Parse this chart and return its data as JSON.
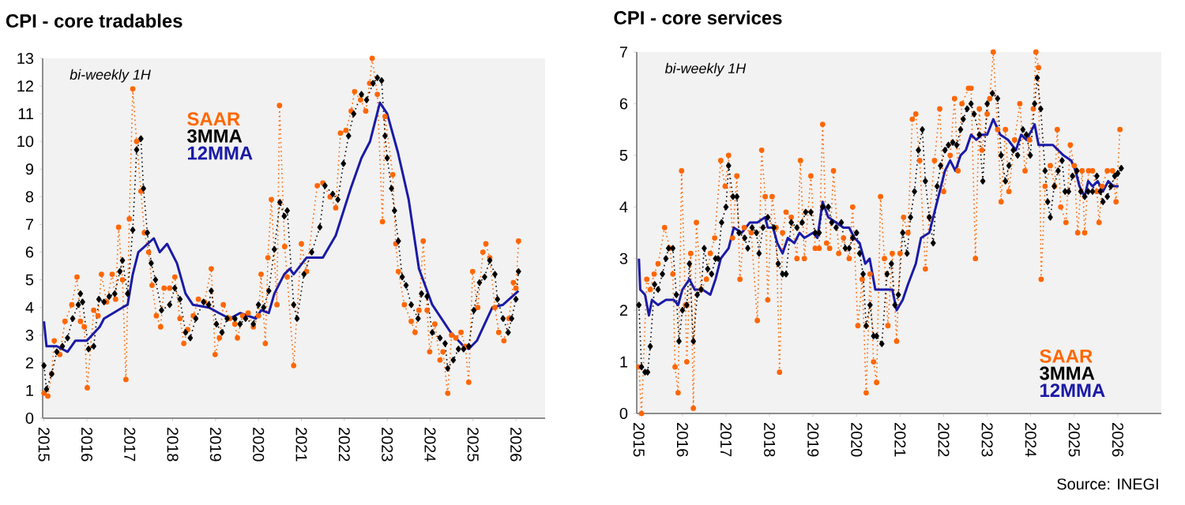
{
  "chart_data": [
    {
      "type": "line",
      "title": "CPI - core tradables",
      "annotations": [
        "bi-weekly 1H"
      ],
      "xlim": [
        2014.97,
        2026.68
      ],
      "ylim": [
        0,
        13
      ],
      "xticks": [
        2015,
        2016,
        2017,
        2018,
        2019,
        2020,
        2021,
        2022,
        2023,
        2024,
        2025,
        2026
      ],
      "yticks": [
        0,
        1,
        2,
        3,
        4,
        5,
        6,
        7,
        8,
        9,
        10,
        11,
        12,
        13
      ],
      "legend": "top left",
      "series": [
        {
          "name": "SAAR",
          "color": "#ff6600",
          "line_style": "dotted",
          "marker": "circle",
          "x": [
            2015.0,
            2015.09,
            2015.18,
            2015.24,
            2015.37,
            2015.49,
            2015.65,
            2015.77,
            2015.85,
            2015.94,
            2016.01,
            2016.16,
            2016.26,
            2016.34,
            2016.46,
            2016.59,
            2016.67,
            2016.74,
            2016.83,
            2016.91,
            2016.99,
            2017.07,
            2017.16,
            2017.26,
            2017.34,
            2017.44,
            2017.52,
            2017.62,
            2017.72,
            2017.8,
            2017.93,
            2018.05,
            2018.17,
            2018.26,
            2018.35,
            2018.48,
            2018.6,
            2018.74,
            2018.9,
            2018.99,
            2019.09,
            2019.18,
            2019.33,
            2019.45,
            2019.51,
            2019.63,
            2019.76,
            2019.88,
            2020.0,
            2020.06,
            2020.16,
            2020.22,
            2020.3,
            2020.43,
            2020.49,
            2020.61,
            2020.67,
            2020.82,
            2021.0,
            2021.12,
            2021.37,
            2021.5,
            2021.67,
            2021.8,
            2021.91,
            2022.04,
            2022.16,
            2022.24,
            2022.38,
            2022.5,
            2022.59,
            2022.65,
            2022.77,
            2022.89,
            2022.95,
            2023.13,
            2023.2,
            2023.26,
            2023.4,
            2023.56,
            2023.65,
            2023.74,
            2023.84,
            2023.93,
            2023.99,
            2024.11,
            2024.23,
            2024.3,
            2024.41,
            2024.5,
            2024.6,
            2024.72,
            2024.82,
            2024.9,
            2024.99,
            2025.11,
            2025.23,
            2025.3,
            2025.39,
            2025.51,
            2025.6,
            2025.72,
            2025.84,
            2025.94,
            2026.0,
            2026.06
          ],
          "values": [
            0.9,
            0.8,
            1.6,
            2.8,
            2.3,
            3.5,
            4.1,
            5.1,
            3.5,
            3.3,
            1.1,
            3.9,
            3.7,
            5.2,
            4.2,
            5.2,
            4.3,
            6.9,
            5.0,
            1.4,
            7.2,
            11.9,
            10.0,
            8.2,
            6.7,
            6.0,
            4.8,
            3.7,
            3.3,
            4.7,
            4.7,
            5.1,
            3.6,
            2.7,
            3.2,
            3.7,
            4.3,
            4.2,
            5.4,
            2.3,
            2.9,
            4.1,
            3.6,
            3.4,
            2.9,
            3.7,
            3.8,
            3.3,
            3.7,
            5.2,
            2.7,
            5.8,
            7.9,
            4.1,
            11.3,
            6.2,
            5.1,
            1.9,
            6.3,
            5.3,
            8.4,
            8.5,
            8.0,
            7.6,
            10.3,
            10.4,
            11.1,
            11.8,
            11.5,
            11.1,
            12.1,
            13.0,
            11.7,
            7.1,
            10.9,
            8.8,
            6.3,
            5.3,
            4.1,
            3.5,
            3.1,
            3.9,
            6.4,
            3.9,
            2.4,
            3.4,
            2.1,
            2.4,
            0.9,
            3.0,
            2.9,
            3.1,
            2.6,
            1.3,
            5.3,
            4.0,
            6.0,
            6.3,
            5.8,
            4.0,
            3.1,
            2.8,
            3.6,
            4.9,
            4.7,
            6.4
          ]
        },
        {
          "name": "3MMA",
          "color": "#000000",
          "line_style": "dotted",
          "marker": "diamond",
          "x": [
            2015.0,
            2015.06,
            2015.18,
            2015.3,
            2015.43,
            2015.55,
            2015.67,
            2015.8,
            2015.85,
            2015.9,
            2016.04,
            2016.16,
            2016.28,
            2016.4,
            2016.52,
            2016.65,
            2016.77,
            2016.83,
            2016.95,
            2017.07,
            2017.16,
            2017.26,
            2017.32,
            2017.41,
            2017.5,
            2017.6,
            2017.74,
            2017.93,
            2018.05,
            2018.17,
            2018.3,
            2018.41,
            2018.54,
            2018.72,
            2018.84,
            2018.9,
            2019.02,
            2019.15,
            2019.27,
            2019.45,
            2019.57,
            2019.7,
            2019.88,
            2020.0,
            2020.12,
            2020.24,
            2020.37,
            2020.5,
            2020.6,
            2020.67,
            2020.82,
            2020.9,
            2021.06,
            2021.24,
            2021.43,
            2021.55,
            2021.73,
            2021.85,
            2021.98,
            2022.1,
            2022.22,
            2022.4,
            2022.52,
            2022.67,
            2022.77,
            2022.87,
            2022.95,
            2023.0,
            2023.1,
            2023.17,
            2023.26,
            2023.35,
            2023.44,
            2023.56,
            2023.72,
            2023.8,
            2023.93,
            2024.05,
            2024.23,
            2024.35,
            2024.41,
            2024.54,
            2024.66,
            2024.78,
            2024.9,
            2025.02,
            2025.15,
            2025.27,
            2025.39,
            2025.51,
            2025.57,
            2025.7,
            2025.82,
            2025.9,
            2026.0,
            2026.06
          ],
          "values": [
            1.9,
            1.05,
            1.6,
            2.4,
            2.6,
            2.9,
            3.6,
            4.1,
            4.5,
            4.2,
            2.5,
            2.6,
            4.3,
            4.2,
            4.4,
            4.5,
            5.3,
            5.7,
            4.5,
            6.8,
            9.7,
            10.1,
            8.3,
            6.7,
            5.6,
            5.0,
            3.9,
            4.1,
            4.7,
            4.3,
            3.1,
            2.9,
            3.6,
            4.2,
            4.1,
            4.6,
            3.4,
            3.1,
            3.6,
            3.6,
            3.4,
            3.6,
            3.4,
            4.1,
            4.0,
            4.6,
            6.1,
            7.8,
            7.3,
            7.5,
            4.1,
            3.6,
            5.2,
            6.0,
            6.9,
            8.4,
            8.1,
            7.9,
            9.2,
            10.2,
            11.0,
            11.7,
            11.5,
            12.1,
            12.3,
            12.2,
            10.2,
            9.4,
            8.3,
            7.5,
            6.4,
            5.1,
            4.8,
            4.1,
            3.6,
            4.5,
            4.4,
            3.1,
            2.9,
            2.7,
            1.8,
            2.1,
            2.5,
            2.5,
            2.6,
            3.9,
            4.9,
            5.1,
            5.7,
            5.2,
            4.3,
            3.6,
            3.1,
            3.6,
            4.3,
            5.3
          ]
        },
        {
          "name": "12MMA",
          "color": "#1a1aa6",
          "line_style": "solid",
          "marker": "none",
          "x": [
            2015.0,
            2015.06,
            2015.3,
            2015.55,
            2015.73,
            2016.0,
            2016.3,
            2016.4,
            2016.83,
            2016.95,
            2017.07,
            2017.2,
            2017.56,
            2017.7,
            2017.87,
            2018.1,
            2018.3,
            2018.47,
            2018.84,
            2019.08,
            2019.33,
            2019.57,
            2019.94,
            2020.06,
            2020.24,
            2020.37,
            2020.6,
            2020.73,
            2020.82,
            2021.12,
            2021.5,
            2021.8,
            2022.15,
            2022.4,
            2022.6,
            2022.83,
            2023.0,
            2023.25,
            2023.5,
            2023.74,
            2024.05,
            2024.48,
            2024.78,
            2024.9,
            2025.09,
            2025.45,
            2025.7,
            2026.06
          ],
          "values": [
            3.5,
            2.6,
            2.6,
            2.4,
            2.8,
            2.8,
            3.3,
            3.6,
            4.0,
            4.1,
            5.2,
            6.0,
            6.5,
            6.0,
            6.3,
            5.6,
            4.5,
            4.1,
            4.0,
            3.8,
            3.6,
            3.8,
            3.6,
            3.9,
            3.8,
            4.5,
            5.2,
            5.4,
            5.2,
            5.8,
            5.8,
            6.6,
            8.3,
            9.4,
            10.0,
            11.4,
            11.0,
            9.6,
            7.9,
            5.4,
            4.1,
            3.1,
            2.6,
            2.5,
            2.8,
            4.0,
            4.1,
            4.6
          ]
        }
      ]
    },
    {
      "type": "line",
      "title": "CPI - core services",
      "annotations": [
        "bi-weekly 1H",
        "Source: INEGI"
      ],
      "xlim": [
        2014.95,
        2027.0
      ],
      "ylim": [
        0,
        7
      ],
      "xticks": [
        2015,
        2016,
        2017,
        2018,
        2019,
        2020,
        2021,
        2022,
        2023,
        2024,
        2025,
        2026
      ],
      "yticks": [
        0,
        1,
        2,
        3,
        4,
        5,
        6,
        7
      ],
      "legend": "bottom right",
      "series": [
        {
          "name": "SAAR",
          "color": "#ff6600",
          "line_style": "dotted",
          "marker": "circle",
          "x": [
            2015.0,
            2015.06,
            2015.18,
            2015.26,
            2015.35,
            2015.44,
            2015.59,
            2015.71,
            2015.78,
            2015.83,
            2015.9,
            2015.98,
            2016.07,
            2016.1,
            2016.19,
            2016.25,
            2016.32,
            2016.43,
            2016.55,
            2016.64,
            2016.74,
            2016.88,
            2016.98,
            2017.06,
            2017.15,
            2017.25,
            2017.32,
            2017.42,
            2017.58,
            2017.72,
            2017.82,
            2017.9,
            2017.96,
            2018.06,
            2018.15,
            2018.23,
            2018.3,
            2018.38,
            2018.5,
            2018.63,
            2018.71,
            2018.8,
            2018.95,
            2019.05,
            2019.14,
            2019.22,
            2019.31,
            2019.38,
            2019.47,
            2019.59,
            2019.7,
            2019.83,
            2019.91,
            2020.03,
            2020.13,
            2020.22,
            2020.31,
            2020.39,
            2020.46,
            2020.55,
            2020.64,
            2020.72,
            2020.82,
            2020.92,
            2021.0,
            2021.08,
            2021.18,
            2021.28,
            2021.36,
            2021.45,
            2021.58,
            2021.67,
            2021.79,
            2021.91,
            2022.0,
            2022.15,
            2022.25,
            2022.33,
            2022.42,
            2022.57,
            2022.63,
            2022.73,
            2022.82,
            2022.88,
            2023.0,
            2023.06,
            2023.14,
            2023.24,
            2023.32,
            2023.42,
            2023.5,
            2023.63,
            2023.75,
            2023.87,
            2023.97,
            2024.06,
            2024.12,
            2024.18,
            2024.24,
            2024.33,
            2024.45,
            2024.55,
            2024.61,
            2024.69,
            2024.81,
            2024.91,
            2025.0,
            2025.08,
            2025.18,
            2025.24,
            2025.33,
            2025.42,
            2025.52,
            2025.57,
            2025.64,
            2025.76,
            2025.88,
            2025.96,
            2026.05
          ],
          "values": [
            0.9,
            0.0,
            2.6,
            2.4,
            2.7,
            2.9,
            3.6,
            3.2,
            2.7,
            0.9,
            0.4,
            4.7,
            2.1,
            1.0,
            3.1,
            0.1,
            3.7,
            2.4,
            2.6,
            3.1,
            3.4,
            4.9,
            4.4,
            5.0,
            3.4,
            4.6,
            2.6,
            3.6,
            3.5,
            1.8,
            5.1,
            4.2,
            2.2,
            4.2,
            3.6,
            0.8,
            3.5,
            3.9,
            3.8,
            3.0,
            4.9,
            3.0,
            4.6,
            3.2,
            3.2,
            5.6,
            3.3,
            3.2,
            4.7,
            3.1,
            3.4,
            3.0,
            4.0,
            1.7,
            2.6,
            0.4,
            2.7,
            1.0,
            0.6,
            4.2,
            3.0,
            1.7,
            3.1,
            1.4,
            3.1,
            3.8,
            3.5,
            5.7,
            5.8,
            4.9,
            2.8,
            3.8,
            4.9,
            5.9,
            4.3,
            5.0,
            6.1,
            4.7,
            6.0,
            6.3,
            6.3,
            3.0,
            5.9,
            5.1,
            5.8,
            6.1,
            7.0,
            5.5,
            4.1,
            5.5,
            4.3,
            5.3,
            6.0,
            4.7,
            5.3,
            5.9,
            7.0,
            6.7,
            2.6,
            4.4,
            4.8,
            4.4,
            5.5,
            4.0,
            3.7,
            5.2,
            4.8,
            3.5,
            4.7,
            3.5,
            4.7,
            4.7,
            4.3,
            3.7,
            4.4,
            4.7,
            4.7,
            4.1,
            5.5
          ]
        },
        {
          "name": "3MMA",
          "color": "#000000",
          "line_style": "dotted",
          "marker": "diamond",
          "x": [
            2015.0,
            2015.06,
            2015.14,
            2015.2,
            2015.26,
            2015.36,
            2015.44,
            2015.54,
            2015.62,
            2015.68,
            2015.78,
            2015.86,
            2015.92,
            2016.0,
            2016.1,
            2016.16,
            2016.25,
            2016.34,
            2016.43,
            2016.5,
            2016.58,
            2016.67,
            2016.76,
            2016.82,
            2016.9,
            2017.0,
            2017.06,
            2017.16,
            2017.25,
            2017.3,
            2017.43,
            2017.5,
            2017.6,
            2017.7,
            2017.76,
            2017.85,
            2017.96,
            2018.1,
            2018.2,
            2018.3,
            2018.38,
            2018.5,
            2018.63,
            2018.75,
            2018.83,
            2018.95,
            2019.05,
            2019.14,
            2019.22,
            2019.35,
            2019.43,
            2019.53,
            2019.65,
            2019.74,
            2019.83,
            2019.91,
            2020.0,
            2020.07,
            2020.15,
            2020.22,
            2020.31,
            2020.39,
            2020.46,
            2020.58,
            2020.7,
            2020.8,
            2020.88,
            2020.96,
            2021.06,
            2021.16,
            2021.24,
            2021.33,
            2021.42,
            2021.51,
            2021.58,
            2021.67,
            2021.76,
            2021.85,
            2021.93,
            2022.03,
            2022.11,
            2022.21,
            2022.3,
            2022.39,
            2022.45,
            2022.54,
            2022.63,
            2022.7,
            2022.82,
            2022.9,
            2023.0,
            2023.12,
            2023.24,
            2023.32,
            2023.42,
            2023.5,
            2023.6,
            2023.7,
            2023.82,
            2023.9,
            2023.99,
            2024.09,
            2024.15,
            2024.23,
            2024.33,
            2024.39,
            2024.45,
            2024.54,
            2024.63,
            2024.72,
            2024.79,
            2024.87,
            2024.96,
            2025.06,
            2025.15,
            2025.24,
            2025.32,
            2025.42,
            2025.52,
            2025.6,
            2025.66,
            2025.76,
            2025.84,
            2025.93,
            2026.0,
            2026.08
          ],
          "values": [
            2.1,
            0.9,
            0.8,
            0.8,
            1.3,
            2.5,
            2.4,
            2.7,
            3.0,
            3.2,
            3.2,
            2.3,
            1.4,
            2.0,
            2.1,
            2.9,
            1.4,
            2.3,
            2.4,
            3.2,
            2.8,
            2.7,
            3.0,
            3.0,
            3.7,
            4.0,
            4.8,
            4.2,
            4.2,
            3.5,
            3.4,
            3.2,
            3.6,
            3.5,
            3.1,
            3.6,
            3.8,
            3.6,
            2.9,
            2.7,
            2.7,
            3.7,
            3.6,
            3.7,
            3.9,
            3.9,
            3.5,
            3.5,
            4.0,
            4.0,
            3.7,
            3.6,
            3.7,
            3.2,
            3.2,
            3.4,
            3.5,
            3.1,
            2.7,
            1.7,
            2.1,
            1.5,
            1.5,
            1.35,
            2.7,
            2.9,
            2.1,
            2.3,
            3.5,
            3.1,
            3.8,
            4.3,
            5.1,
            5.5,
            4.5,
            3.8,
            3.3,
            4.4,
            4.8,
            5.1,
            5.2,
            5.25,
            5.2,
            5.5,
            5.7,
            5.9,
            6.0,
            5.8,
            5.4,
            4.5,
            6.0,
            6.2,
            6.1,
            5.0,
            4.5,
            4.8,
            5.1,
            5.0,
            5.5,
            5.4,
            5.0,
            6.0,
            6.5,
            5.9,
            4.7,
            4.1,
            3.8,
            4.4,
            4.7,
            4.9,
            4.3,
            4.3,
            4.6,
            4.7,
            4.3,
            4.2,
            4.3,
            4.3,
            4.6,
            4.3,
            4.1,
            4.2,
            4.4,
            4.6,
            4.65,
            4.75
          ]
        },
        {
          "name": "12MMA",
          "color": "#1a1aa6",
          "line_style": "solid",
          "marker": "none",
          "x": [
            2015.0,
            2015.03,
            2015.14,
            2015.23,
            2015.3,
            2015.44,
            2015.62,
            2015.8,
            2015.9,
            2016.0,
            2016.16,
            2016.28,
            2016.46,
            2016.64,
            2016.76,
            2016.88,
            2017.06,
            2017.18,
            2017.36,
            2017.55,
            2017.72,
            2017.9,
            2017.96,
            2018.08,
            2018.18,
            2018.3,
            2018.42,
            2018.57,
            2018.69,
            2018.8,
            2019.0,
            2019.1,
            2019.22,
            2019.35,
            2019.53,
            2019.7,
            2019.83,
            2019.95,
            2020.07,
            2020.2,
            2020.3,
            2020.43,
            2020.64,
            2020.82,
            2020.92,
            2021.06,
            2021.18,
            2021.36,
            2021.48,
            2021.67,
            2021.79,
            2021.91,
            2022.03,
            2022.15,
            2022.27,
            2022.39,
            2022.51,
            2022.63,
            2022.75,
            2022.88,
            2023.0,
            2023.14,
            2023.3,
            2023.48,
            2023.66,
            2023.78,
            2023.9,
            2024.03,
            2024.09,
            2024.18,
            2024.33,
            2024.51,
            2024.63,
            2024.75,
            2024.93,
            2025.03,
            2025.12,
            2025.24,
            2025.32,
            2025.42,
            2025.54,
            2025.66,
            2025.78,
            2025.9,
            2026.02
          ],
          "values": [
            3.0,
            2.4,
            2.3,
            1.9,
            2.2,
            2.1,
            2.2,
            2.2,
            2.1,
            2.4,
            2.6,
            2.4,
            2.4,
            2.3,
            2.6,
            3.0,
            3.2,
            3.6,
            3.5,
            3.7,
            3.7,
            3.8,
            3.6,
            3.6,
            3.3,
            3.1,
            3.4,
            3.3,
            3.5,
            3.4,
            3.5,
            3.4,
            4.1,
            3.8,
            3.7,
            3.6,
            3.6,
            3.4,
            3.3,
            2.9,
            3.0,
            2.4,
            2.4,
            2.4,
            2.0,
            2.2,
            2.5,
            2.9,
            3.4,
            3.5,
            3.9,
            4.3,
            4.7,
            4.9,
            4.7,
            5.0,
            5.1,
            5.4,
            5.3,
            5.4,
            5.4,
            5.7,
            5.4,
            5.3,
            5.1,
            5.4,
            5.3,
            5.5,
            5.6,
            5.2,
            5.2,
            5.2,
            5.1,
            5.0,
            4.9,
            4.7,
            4.4,
            4.2,
            4.5,
            4.4,
            4.5,
            4.3,
            4.5,
            4.4,
            4.4
          ]
        }
      ]
    }
  ]
}
